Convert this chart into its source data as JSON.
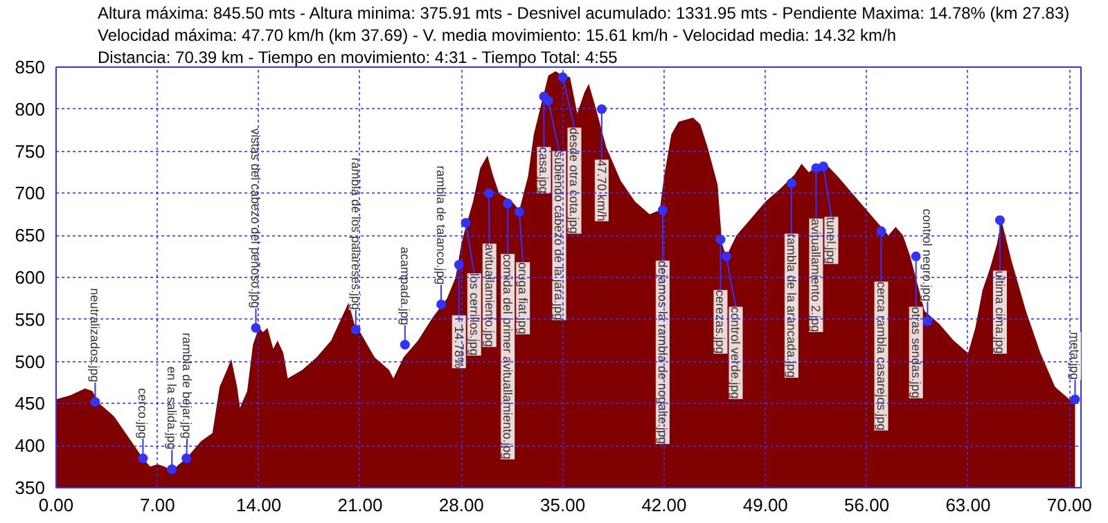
{
  "chart_data": {
    "type": "area",
    "x": [
      0,
      1,
      2,
      2.5,
      3,
      4,
      5,
      6,
      6.5,
      7,
      7.5,
      8,
      8.5,
      9,
      10,
      10.8,
      11.3,
      11.8,
      12.1,
      12.5,
      12.7,
      13.2,
      13.6,
      14,
      14.3,
      14.6,
      15,
      15.3,
      15.7,
      16,
      17,
      18,
      19,
      19.8,
      20.2,
      20.6,
      21,
      22,
      23,
      23.3,
      24,
      25,
      26,
      27,
      27.6,
      28,
      28.3,
      28.8,
      29.3,
      29.8,
      30.2,
      30.6,
      31.5,
      32,
      32.6,
      33,
      33.5,
      34,
      34.5,
      35,
      35.5,
      36,
      36.5,
      36.8,
      37.3,
      38,
      39,
      40,
      41,
      41.7,
      42,
      42.5,
      43,
      44,
      44.5,
      45,
      45.7,
      46,
      46.3,
      47,
      48,
      49,
      50,
      51,
      51.5,
      52,
      52.5,
      53,
      54,
      55,
      56,
      57,
      57.5,
      58,
      58.5,
      59,
      60,
      61,
      62,
      63,
      63.5,
      64,
      64.5,
      65,
      65.3,
      66,
      67,
      68,
      69,
      70,
      70.39
    ],
    "series": [
      {
        "color": "#800000",
        "values": [
          455,
          460,
          468,
          465,
          450,
          435,
          410,
          385,
          375,
          378,
          375,
          370,
          378,
          385,
          405,
          415,
          470,
          490,
          503,
          470,
          445,
          465,
          520,
          540,
          535,
          540,
          515,
          525,
          510,
          480,
          490,
          505,
          525,
          555,
          570,
          545,
          535,
          505,
          490,
          480,
          505,
          525,
          552,
          575,
          600,
          640,
          660,
          690,
          730,
          745,
          720,
          700,
          690,
          680,
          720,
          770,
          805,
          840,
          845,
          840,
          838,
          795,
          820,
          830,
          800,
          755,
          715,
          690,
          675,
          680,
          720,
          770,
          785,
          790,
          782,
          755,
          710,
          640,
          625,
          650,
          670,
          690,
          705,
          722,
          735,
          725,
          732,
          738,
          720,
          700,
          680,
          660,
          650,
          660,
          650,
          625,
          560,
          545,
          525,
          510,
          540,
          585,
          610,
          640,
          668,
          620,
          560,
          510,
          470,
          455,
          455
        ]
      }
    ],
    "xlim": [
      0,
      70.8
    ],
    "xticks": [
      {
        "value": 0,
        "label": "0.00"
      },
      {
        "value": 7,
        "label": "7.00"
      },
      {
        "value": 14,
        "label": "14.00"
      },
      {
        "value": 21,
        "label": "21.00"
      },
      {
        "value": 28,
        "label": "28.00"
      },
      {
        "value": 35,
        "label": "35.00"
      },
      {
        "value": 42,
        "label": "42.00"
      },
      {
        "value": 49,
        "label": "49.00"
      },
      {
        "value": 56,
        "label": "56.00"
      },
      {
        "value": 63,
        "label": "63.00"
      },
      {
        "value": 70,
        "label": "70.00"
      }
    ],
    "ylim": [
      350,
      850
    ],
    "yticks": [
      350,
      400,
      450,
      500,
      550,
      600,
      650,
      700,
      750,
      800,
      850
    ],
    "grid": true,
    "annotations": [
      "Altura máxima: 845.50 mts - Altura minima: 375.91 mts - Desnivel acumulado: 1331.95 mts - Pendiente Maxima: 14.78% (km 27.83)",
      "Velocidad máxima: 47.70 km/h (km 37.69) - V. media movimiento: 15.61 km/h - Velocidad media: 14.32 km/h",
      "Distancia: 70.39 km - Tiempo en movimiento: 4:31 - Tiempo Total: 4:55",
      {
        "text": "neutralizados.jpg",
        "x": 2.7,
        "y": 452
      },
      {
        "text": "cerco.jpg",
        "x": 6.0,
        "y": 385
      },
      {
        "text": "en la salida.jpg",
        "x": 8.0,
        "y": 372
      },
      {
        "text": "rambla de bejar.jpg",
        "x": 9.0,
        "y": 385
      },
      {
        "text": "vistas del cabezo del peñoso.jpg",
        "x": 13.8,
        "y": 540
      },
      {
        "text": "rambla de los palareses.jpg",
        "x": 20.7,
        "y": 538
      },
      {
        "text": "acampada.jpg",
        "x": 24.1,
        "y": 520
      },
      {
        "text": "rambla de talanco.jpg",
        "x": 26.6,
        "y": 568
      },
      {
        "text": "+ 14.78%",
        "x": 27.83,
        "y": 615
      },
      {
        "text": "los cerrillos.jpg",
        "x": 28.3,
        "y": 665
      },
      {
        "text": "avituallamiento.jpg",
        "x": 29.9,
        "y": 700
      },
      {
        "text": "oruga fiat.jpg",
        "x": 32.0,
        "y": 678
      },
      {
        "text": "comida del primer avituallamiento.jpg",
        "x": 31.2,
        "y": 688
      },
      {
        "text": "casa.jpg",
        "x": 33.7,
        "y": 815
      },
      {
        "text": "subiendo cabezo de la jara.jpg",
        "x": 34.0,
        "y": 810
      },
      {
        "text": "desde otra cota.jpg",
        "x": 35.0,
        "y": 838
      },
      {
        "text": "47.70 km/h",
        "x": 37.69,
        "y": 800
      },
      {
        "text": "dejamos la rambla de nogalte.jpg",
        "x": 41.9,
        "y": 680
      },
      {
        "text": "cerezas.jpg",
        "x": 45.9,
        "y": 645
      },
      {
        "text": "control verde.jpg",
        "x": 46.3,
        "y": 625
      },
      {
        "text": "rambla de la arancada.jpg",
        "x": 50.8,
        "y": 712
      },
      {
        "text": "avituallamiento 2.jpg",
        "x": 52.5,
        "y": 730
      },
      {
        "text": "tunel.jpg",
        "x": 53.0,
        "y": 732
      },
      {
        "text": "cerca rambla casarejos.jpg",
        "x": 57.0,
        "y": 655
      },
      {
        "text": "otras sendas.jpg",
        "x": 59.4,
        "y": 625
      },
      {
        "text": "control negro.jpg",
        "x": 60.2,
        "y": 548
      },
      {
        "text": "ultima cima.jpg",
        "x": 65.2,
        "y": 668
      },
      {
        "text": "meta.jpg",
        "x": 70.39,
        "y": 455
      }
    ]
  }
}
